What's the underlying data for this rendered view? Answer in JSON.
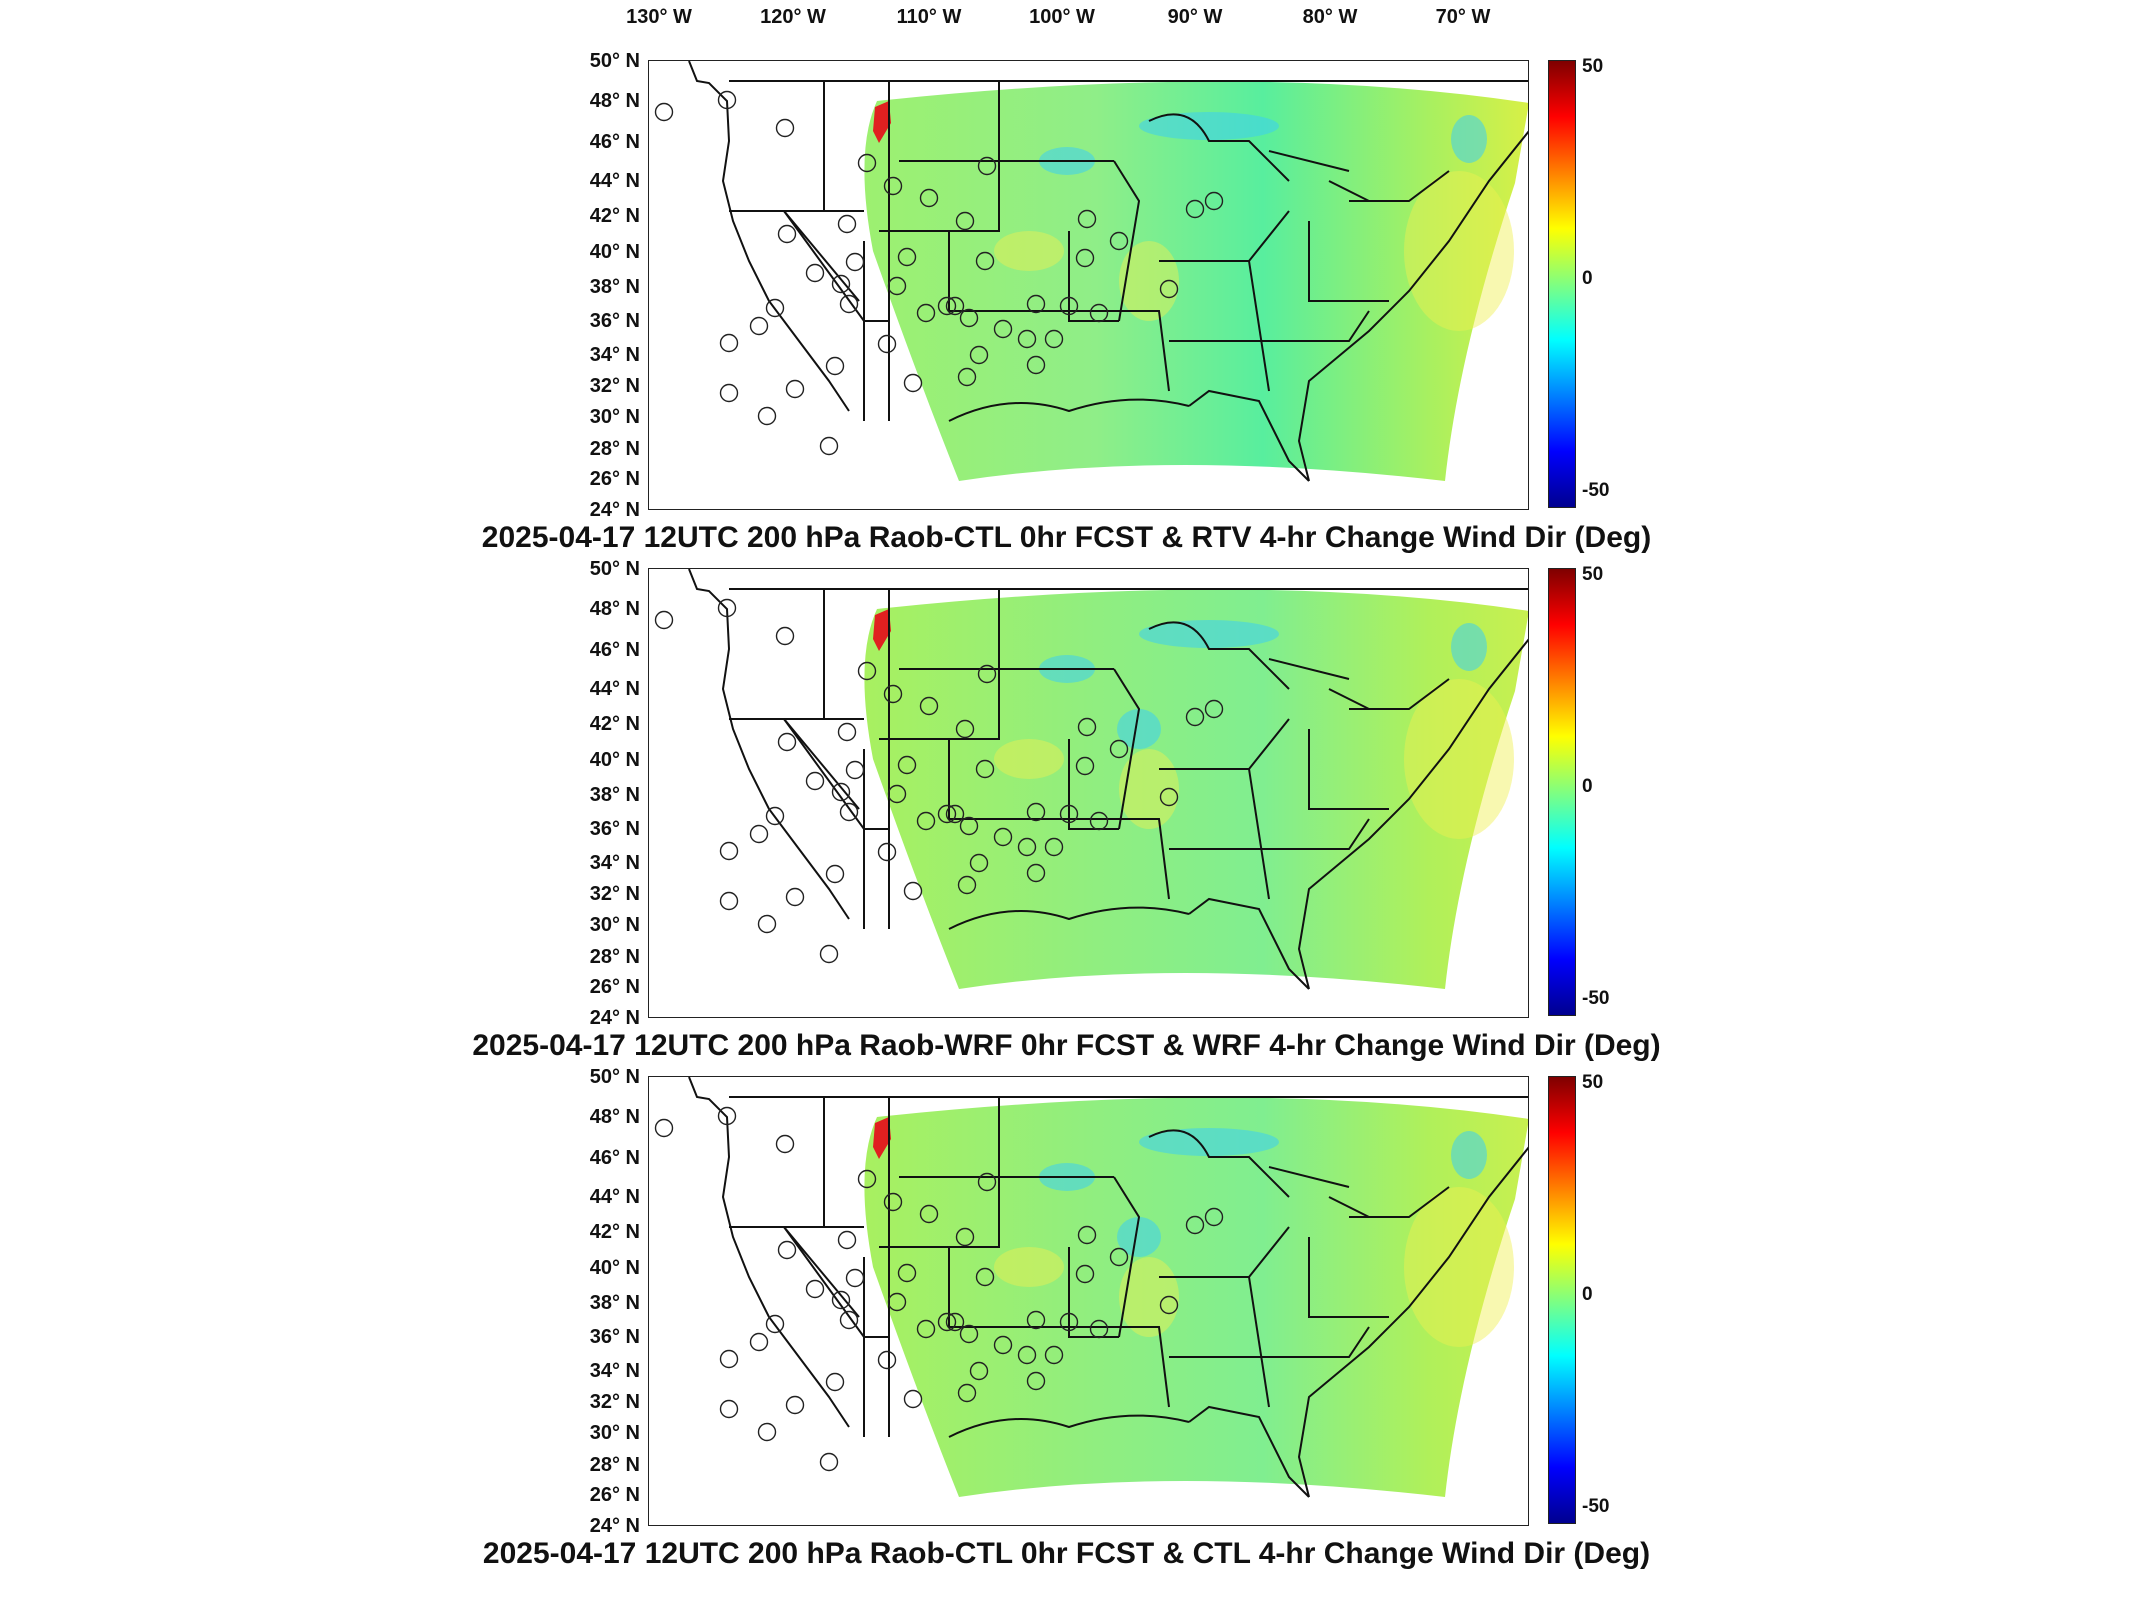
{
  "longitude_labels": [
    "130° W",
    "120° W",
    "110° W",
    "100° W",
    "90° W",
    "80° W",
    "70° W"
  ],
  "latitude_labels": [
    "50° N",
    "48° N",
    "46° N",
    "44° N",
    "42° N",
    "40° N",
    "38° N",
    "36° N",
    "34° N",
    "32° N",
    "30° N",
    "28° N",
    "26° N",
    "24° N"
  ],
  "colorbar": {
    "max_label": "50",
    "mid_label": "0",
    "min_label": "-50",
    "colors": [
      "#7f0000",
      "#ff0000",
      "#ff8000",
      "#ffff00",
      "#80ff80",
      "#00ffff",
      "#0080ff",
      "#0000ff",
      "#00008f"
    ]
  },
  "panels": [
    {
      "title": "2025-04-17 12UTC 200 hPa Raob-CTL 0hr FCST & RTV 4-hr Change Wind Dir (Deg)"
    },
    {
      "title": "2025-04-17 12UTC 200 hPa Raob-WRF 0hr FCST & WRF 4-hr Change Wind Dir (Deg)"
    },
    {
      "title": "2025-04-17 12UTC 200 hPa Raob-CTL 0hr FCST & CTL 4-hr Change Wind Dir (Deg)"
    }
  ]
}
